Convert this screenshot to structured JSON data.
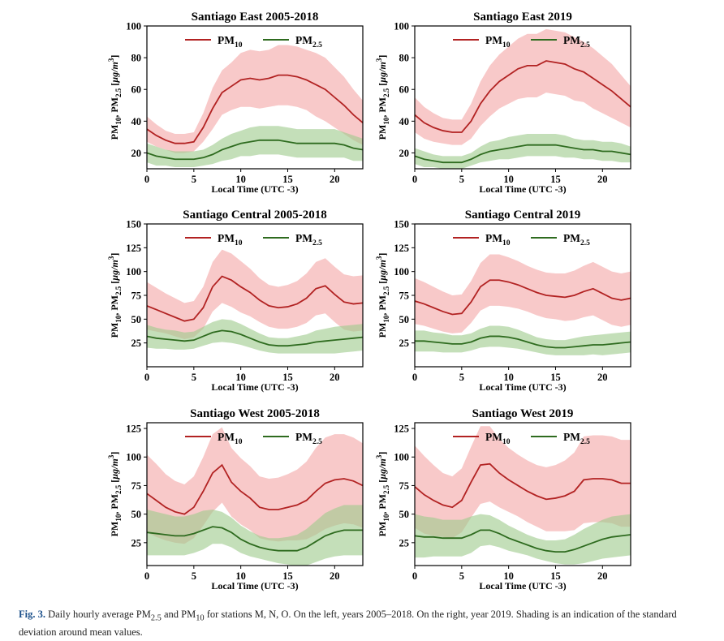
{
  "chart_data": [
    {
      "type": "line",
      "title": "Santiago East 2005-2018",
      "xlabel": "Local Time (UTC -3)",
      "ylabel": "PM10, PM2.5 [µg/m³]",
      "xlim": [
        0,
        23
      ],
      "ylim": [
        10,
        100
      ],
      "xticks": [
        0,
        5,
        10,
        15,
        20
      ],
      "yticks": [
        20,
        40,
        60,
        80,
        100
      ],
      "x": [
        0,
        1,
        2,
        3,
        4,
        5,
        6,
        7,
        8,
        9,
        10,
        11,
        12,
        13,
        14,
        15,
        16,
        17,
        18,
        19,
        20,
        21,
        22,
        23
      ],
      "legend_position": "top",
      "series": [
        {
          "name": "PM10",
          "color": "#b22222",
          "shade": "#f4a8a8",
          "values": [
            35,
            31,
            28,
            26,
            26,
            27,
            36,
            48,
            58,
            62,
            66,
            67,
            66,
            67,
            69,
            69,
            68,
            66,
            63,
            60,
            55,
            50,
            44,
            39
          ],
          "std": [
            8,
            7,
            6,
            6,
            6,
            6,
            9,
            13,
            14,
            15,
            17,
            18,
            18,
            18,
            19,
            19,
            19,
            19,
            20,
            20,
            19,
            18,
            16,
            14
          ]
        },
        {
          "name": "PM2.5",
          "color": "#2e6b1f",
          "shade": "#9fcb8e",
          "values": [
            20,
            18,
            17,
            16,
            16,
            16,
            17,
            19,
            22,
            24,
            26,
            27,
            28,
            28,
            28,
            27,
            26,
            26,
            26,
            26,
            26,
            25,
            23,
            22
          ],
          "std": [
            6,
            6,
            5,
            5,
            5,
            5,
            5,
            6,
            7,
            8,
            8,
            9,
            9,
            9,
            9,
            9,
            9,
            9,
            9,
            9,
            9,
            8,
            8,
            7
          ]
        }
      ]
    },
    {
      "type": "line",
      "title": "Santiago East 2019",
      "xlabel": "Local Time (UTC -3)",
      "ylabel": "PM10, PM2.5 [µg/m³]",
      "xlim": [
        0,
        23
      ],
      "ylim": [
        10,
        100
      ],
      "xticks": [
        0,
        5,
        10,
        15,
        20
      ],
      "yticks": [
        20,
        40,
        60,
        80,
        100
      ],
      "x": [
        0,
        1,
        2,
        3,
        4,
        5,
        6,
        7,
        8,
        9,
        10,
        11,
        12,
        13,
        14,
        15,
        16,
        17,
        18,
        19,
        20,
        21,
        22,
        23
      ],
      "legend_position": "top",
      "series": [
        {
          "name": "PM10",
          "color": "#b22222",
          "shade": "#f4a8a8",
          "values": [
            44,
            39,
            36,
            34,
            33,
            33,
            40,
            51,
            59,
            65,
            69,
            73,
            75,
            75,
            78,
            77,
            76,
            73,
            71,
            67,
            63,
            59,
            54,
            49
          ],
          "std": [
            11,
            10,
            9,
            8,
            8,
            8,
            11,
            14,
            16,
            17,
            18,
            19,
            20,
            20,
            20,
            20,
            20,
            20,
            19,
            19,
            18,
            17,
            15,
            13
          ]
        },
        {
          "name": "PM2.5",
          "color": "#2e6b1f",
          "shade": "#9fcb8e",
          "values": [
            18,
            16,
            15,
            14,
            14,
            14,
            16,
            19,
            21,
            22,
            23,
            24,
            25,
            25,
            25,
            25,
            24,
            23,
            22,
            22,
            21,
            21,
            20,
            19
          ],
          "std": [
            5,
            5,
            4,
            4,
            4,
            4,
            4,
            5,
            6,
            6,
            7,
            7,
            7,
            7,
            7,
            7,
            7,
            6,
            6,
            6,
            6,
            6,
            6,
            5
          ]
        }
      ]
    },
    {
      "type": "line",
      "title": "Santiago Central 2005-2018",
      "xlabel": "Local Time (UTC -3)",
      "ylabel": "PM10, PM2.5 [µg/m³]",
      "xlim": [
        0,
        23
      ],
      "ylim": [
        0,
        150
      ],
      "xticks": [
        0,
        5,
        10,
        15,
        20
      ],
      "yticks": [
        25,
        50,
        75,
        100,
        125,
        150
      ],
      "x": [
        0,
        1,
        2,
        3,
        4,
        5,
        6,
        7,
        8,
        9,
        10,
        11,
        12,
        13,
        14,
        15,
        16,
        17,
        18,
        19,
        20,
        21,
        22,
        23
      ],
      "legend_position": "top",
      "series": [
        {
          "name": "PM10",
          "color": "#b22222",
          "shade": "#f4a8a8",
          "values": [
            64,
            60,
            56,
            52,
            48,
            50,
            62,
            84,
            95,
            91,
            84,
            78,
            70,
            64,
            62,
            63,
            66,
            72,
            82,
            85,
            76,
            68,
            66,
            67
          ],
          "std": [
            25,
            23,
            21,
            20,
            19,
            19,
            22,
            26,
            28,
            28,
            27,
            25,
            23,
            22,
            22,
            23,
            24,
            26,
            28,
            29,
            29,
            29,
            29,
            29
          ]
        },
        {
          "name": "PM2.5",
          "color": "#2e6b1f",
          "shade": "#9fcb8e",
          "values": [
            32,
            30,
            29,
            28,
            27,
            28,
            32,
            36,
            38,
            37,
            34,
            30,
            26,
            23,
            22,
            22,
            23,
            24,
            26,
            27,
            28,
            29,
            30,
            31
          ],
          "std": [
            12,
            11,
            10,
            10,
            9,
            9,
            10,
            11,
            12,
            12,
            11,
            10,
            9,
            8,
            8,
            8,
            9,
            10,
            12,
            13,
            14,
            14,
            14,
            14
          ]
        }
      ]
    },
    {
      "type": "line",
      "title": "Santiago Central 2019",
      "xlabel": "Local Time (UTC -3)",
      "ylabel": "PM10, PM2.5 [µg/m³]",
      "xlim": [
        0,
        23
      ],
      "ylim": [
        0,
        150
      ],
      "xticks": [
        0,
        5,
        10,
        15,
        20
      ],
      "yticks": [
        25,
        50,
        75,
        100,
        125,
        150
      ],
      "x": [
        0,
        1,
        2,
        3,
        4,
        5,
        6,
        7,
        8,
        9,
        10,
        11,
        12,
        13,
        14,
        15,
        16,
        17,
        18,
        19,
        20,
        21,
        22,
        23
      ],
      "legend_position": "top",
      "series": [
        {
          "name": "PM10",
          "color": "#b22222",
          "shade": "#f4a8a8",
          "values": [
            69,
            66,
            62,
            58,
            55,
            56,
            68,
            84,
            91,
            91,
            89,
            86,
            82,
            78,
            75,
            74,
            73,
            75,
            79,
            82,
            77,
            72,
            70,
            72
          ],
          "std": [
            24,
            23,
            22,
            21,
            20,
            20,
            22,
            25,
            27,
            27,
            26,
            25,
            24,
            24,
            24,
            24,
            25,
            26,
            27,
            28,
            28,
            28,
            28,
            28
          ]
        },
        {
          "name": "PM2.5",
          "color": "#2e6b1f",
          "shade": "#9fcb8e",
          "values": [
            27,
            27,
            26,
            25,
            24,
            24,
            26,
            30,
            32,
            32,
            31,
            29,
            26,
            23,
            21,
            20,
            20,
            21,
            22,
            23,
            23,
            24,
            25,
            26
          ],
          "std": [
            11,
            11,
            10,
            10,
            9,
            9,
            9,
            10,
            11,
            11,
            11,
            10,
            9,
            8,
            8,
            8,
            8,
            9,
            10,
            10,
            11,
            11,
            11,
            11
          ]
        }
      ]
    },
    {
      "type": "line",
      "title": "Santiago West 2005-2018",
      "xlabel": "Local Time (UTC -3)",
      "ylabel": "PM10, PM2.5 [µg/m³]",
      "xlim": [
        0,
        23
      ],
      "ylim": [
        5,
        130
      ],
      "xticks": [
        0,
        5,
        10,
        15,
        20
      ],
      "yticks": [
        25,
        50,
        75,
        100,
        125
      ],
      "x": [
        0,
        1,
        2,
        3,
        4,
        5,
        6,
        7,
        8,
        9,
        10,
        11,
        12,
        13,
        14,
        15,
        16,
        17,
        18,
        19,
        20,
        21,
        22,
        23
      ],
      "legend_position": "top",
      "series": [
        {
          "name": "PM10",
          "color": "#b22222",
          "shade": "#f4a8a8",
          "values": [
            68,
            62,
            56,
            52,
            50,
            56,
            70,
            86,
            93,
            78,
            70,
            64,
            56,
            54,
            54,
            56,
            58,
            62,
            70,
            77,
            80,
            81,
            79,
            75
          ],
          "std": [
            34,
            32,
            29,
            27,
            26,
            27,
            30,
            34,
            33,
            30,
            29,
            28,
            27,
            27,
            28,
            29,
            31,
            34,
            38,
            40,
            40,
            39,
            38,
            37
          ]
        },
        {
          "name": "PM2.5",
          "color": "#2e6b1f",
          "shade": "#9fcb8e",
          "values": [
            34,
            33,
            32,
            31,
            31,
            33,
            36,
            39,
            38,
            34,
            28,
            24,
            21,
            19,
            18,
            18,
            18,
            21,
            26,
            31,
            34,
            36,
            36,
            36
          ],
          "std": [
            20,
            19,
            18,
            17,
            17,
            17,
            17,
            15,
            14,
            13,
            12,
            11,
            10,
            10,
            11,
            12,
            14,
            16,
            18,
            20,
            21,
            22,
            22,
            22
          ]
        }
      ]
    },
    {
      "type": "line",
      "title": "Santiago West 2019",
      "xlabel": "Local Time (UTC -3)",
      "ylabel": "PM10, PM2.5 [µg/m³]",
      "xlim": [
        0,
        23
      ],
      "ylim": [
        5,
        130
      ],
      "xticks": [
        0,
        5,
        10,
        15,
        20
      ],
      "yticks": [
        25,
        50,
        75,
        100,
        125
      ],
      "x": [
        0,
        1,
        2,
        3,
        4,
        5,
        6,
        7,
        8,
        9,
        10,
        11,
        12,
        13,
        14,
        15,
        16,
        17,
        18,
        19,
        20,
        21,
        22,
        23
      ],
      "legend_position": "top",
      "series": [
        {
          "name": "PM10",
          "color": "#b22222",
          "shade": "#f4a8a8",
          "values": [
            74,
            67,
            62,
            58,
            56,
            62,
            78,
            93,
            94,
            86,
            80,
            75,
            70,
            66,
            63,
            64,
            66,
            70,
            80,
            81,
            81,
            80,
            77,
            77
          ],
          "std": [
            36,
            34,
            31,
            28,
            27,
            28,
            31,
            34,
            33,
            30,
            28,
            27,
            27,
            27,
            28,
            29,
            31,
            34,
            38,
            38,
            38,
            38,
            38,
            38
          ]
        },
        {
          "name": "PM2.5",
          "color": "#2e6b1f",
          "shade": "#9fcb8e",
          "values": [
            31,
            30,
            30,
            29,
            29,
            29,
            32,
            36,
            36,
            33,
            29,
            26,
            23,
            20,
            18,
            17,
            17,
            19,
            22,
            25,
            28,
            30,
            31,
            32
          ],
          "std": [
            19,
            18,
            17,
            16,
            16,
            16,
            16,
            14,
            13,
            12,
            11,
            10,
            9,
            9,
            9,
            10,
            11,
            13,
            15,
            16,
            17,
            18,
            18,
            18
          ]
        }
      ]
    }
  ],
  "caption": {
    "label": "Fig. 3.",
    "text_before": "Daily hourly average PM",
    "sub_25": "2.5",
    "text_mid": " and PM",
    "sub_10": "10",
    "text_after": " for stations M, N, O. On the left, years 2005–2018. On the right, year 2019. Shading is an indication of the standard deviation around mean values."
  },
  "labels": {
    "pm10_base": "PM",
    "pm10_sub": "10",
    "pm25_base": "PM",
    "pm25_sub": "2.5"
  }
}
